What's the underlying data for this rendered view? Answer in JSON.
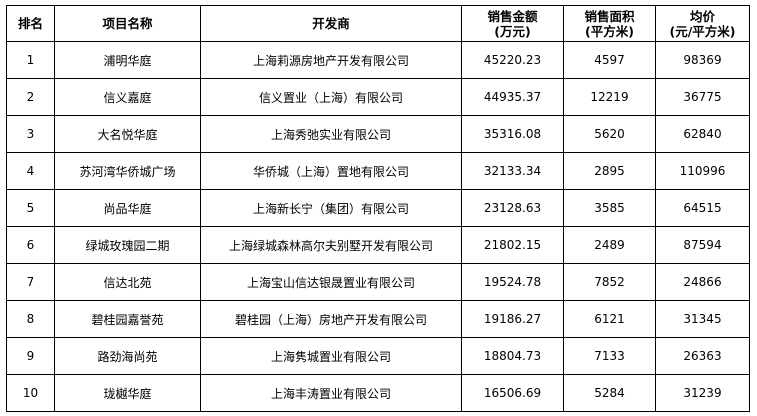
{
  "headers": [
    "排名",
    "项目名称",
    "开发商",
    "销售金额",
    "(万元)",
    "销售面积",
    "(平方米)",
    "均价",
    "(元/平方米)"
  ],
  "rows": [
    [
      "1",
      "浦明华庭",
      "上海莉源房地产开发有限公司",
      "45220.23",
      "4597",
      "98369"
    ],
    [
      "2",
      "信义嘉庭",
      "信义置业（上海）有限公司",
      "44935.37",
      "12219",
      "36775"
    ],
    [
      "3",
      "大名悦华庭",
      "上海秀弛实业有限公司",
      "35316.08",
      "5620",
      "62840"
    ],
    [
      "4",
      "苏河湾华侨城广场",
      "华侨城（上海）置地有限公司",
      "32133.34",
      "2895",
      "110996"
    ],
    [
      "5",
      "尚品华庭",
      "上海新长宁（集团）有限公司",
      "23128.63",
      "3585",
      "64515"
    ],
    [
      "6",
      "绿城玫瑰园二期",
      "上海绿城森林高尔夫别墅开发有限公司",
      "21802.15",
      "2489",
      "87594"
    ],
    [
      "7",
      "信达北苑",
      "上海宝山信达银晟置业有限公司",
      "19524.78",
      "7852",
      "24866"
    ],
    [
      "8",
      "碧桂园嘉誉苑",
      "碧桂园（上海）房地产开发有限公司",
      "19186.27",
      "6121",
      "31345"
    ],
    [
      "9",
      "路劲海尚苑",
      "上海隽城置业有限公司",
      "18804.73",
      "7133",
      "26363"
    ],
    [
      "10",
      "珑樾华庭",
      "上海丰涛置业有限公司",
      "16506.69",
      "5284",
      "31239"
    ]
  ]
}
